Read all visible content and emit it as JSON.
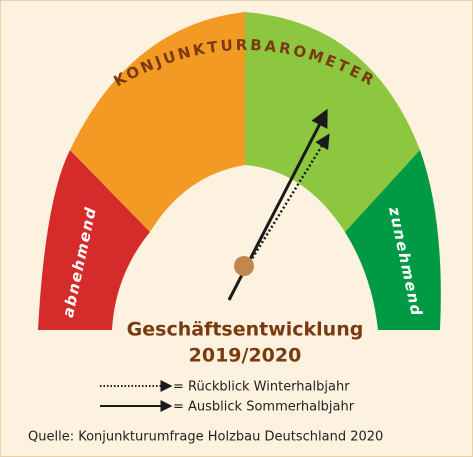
{
  "title": "KONJUNKTURBAROMETER",
  "segments": {
    "left": "abnehmend",
    "right": "zunehmend"
  },
  "center_label": {
    "line1": "Geschäftsentwicklung",
    "line2": "2019/2020"
  },
  "legend": [
    {
      "label": "= Rückblick Winterhalbjahr"
    },
    {
      "label": "= Ausblick Sommerhalbjahr"
    }
  ],
  "source": "Quelle: Konjunkturumfrage Holzbau Deutschland 2020"
}
